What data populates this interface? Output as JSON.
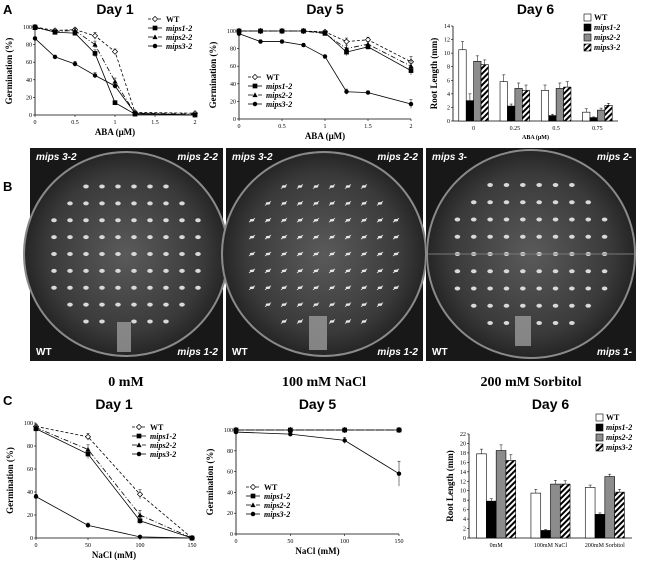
{
  "panel_letters": [
    "A",
    "B",
    "C"
  ],
  "photo_panel": {
    "plates": [
      {
        "top_left": "mips 3-2",
        "top_right": "mips 2-2",
        "bottom_left": "WT",
        "bottom_right": "mips 1-2",
        "caption": "0 mM"
      },
      {
        "top_left": "mips 3-2",
        "top_right": "mips 2-2",
        "bottom_left": "WT",
        "bottom_right": "mips 1-2",
        "caption": "100 mM NaCl"
      },
      {
        "top_left": "mips 3-",
        "top_right": "mips 2-",
        "bottom_left": "WT",
        "bottom_right": "mips 1-",
        "caption": "200 mM Sorbitol"
      }
    ]
  },
  "chart_data": [
    {
      "id": "A1",
      "type": "line",
      "title": "Day 1",
      "xlabel": "ABA (μM)",
      "ylabel": "Germination (%)",
      "xlim": [
        0,
        2
      ],
      "ylim": [
        0,
        100
      ],
      "xticks": [
        0,
        0.5,
        1,
        1.5,
        2
      ],
      "xtick_labels": [
        "0",
        "0.5",
        "1",
        "1.5",
        "2"
      ],
      "yticks": [
        0,
        20,
        40,
        60,
        80,
        100
      ],
      "ytick_labels": [
        "0",
        "20",
        "40",
        "60",
        "80",
        "100"
      ],
      "legend_position": "top-right",
      "grid": false,
      "series": [
        {
          "name": "WT",
          "x": [
            0,
            0.25,
            0.5,
            0.75,
            1,
            1.25,
            2
          ],
          "y": [
            100,
            96,
            97,
            90,
            72,
            3,
            2
          ],
          "err": [
            1,
            2,
            2,
            4,
            3,
            1,
            1
          ]
        },
        {
          "name": "mips1-2",
          "x": [
            0,
            0.25,
            0.5,
            0.75,
            1,
            1.25,
            2
          ],
          "y": [
            100,
            94,
            93,
            70,
            14,
            1,
            0
          ],
          "err": [
            1,
            2,
            2,
            4,
            2,
            1,
            0
          ]
        },
        {
          "name": "mips2-2",
          "x": [
            0,
            0.25,
            0.5,
            0.75,
            1,
            1.25,
            2
          ],
          "y": [
            99,
            95,
            96,
            80,
            38,
            2,
            1
          ],
          "err": [
            1,
            2,
            2,
            4,
            4,
            1,
            1
          ]
        },
        {
          "name": "mips3-2",
          "x": [
            0,
            0.25,
            0.5,
            0.75,
            1,
            1.25,
            2
          ],
          "y": [
            87,
            66,
            58,
            45,
            33,
            2,
            0
          ],
          "err": [
            2,
            2,
            3,
            3,
            3,
            1,
            0
          ]
        }
      ]
    },
    {
      "id": "A2",
      "type": "line",
      "title": "Day 5",
      "xlabel": "ABA (μM)",
      "ylabel": "Germination (%)",
      "xlim": [
        0,
        2
      ],
      "ylim": [
        0,
        100
      ],
      "xticks": [
        0,
        0.5,
        1,
        1.5,
        2
      ],
      "xtick_labels": [
        "0",
        "0.5",
        "1",
        "1.5",
        "2"
      ],
      "yticks": [
        0,
        20,
        40,
        60,
        80,
        100
      ],
      "ytick_labels": [
        "0",
        "20",
        "40",
        "60",
        "80",
        "100"
      ],
      "legend_position": "bottom-left",
      "grid": false,
      "series": [
        {
          "name": "WT",
          "x": [
            0,
            0.25,
            0.5,
            0.75,
            1,
            1.25,
            1.5,
            2
          ],
          "y": [
            100,
            100,
            100,
            100,
            99,
            88,
            90,
            65
          ],
          "err": [
            0,
            0,
            0,
            0,
            1,
            4,
            3,
            6
          ]
        },
        {
          "name": "mips1-2",
          "x": [
            0,
            0.25,
            0.5,
            0.75,
            1,
            1.25,
            1.5,
            2
          ],
          "y": [
            100,
            100,
            100,
            100,
            98,
            76,
            82,
            55
          ],
          "err": [
            0,
            0,
            0,
            0,
            1,
            4,
            3,
            5
          ]
        },
        {
          "name": "mips2-2",
          "x": [
            0,
            0.25,
            0.5,
            0.75,
            1,
            1.25,
            1.5,
            2
          ],
          "y": [
            100,
            100,
            100,
            100,
            97,
            80,
            85,
            60
          ],
          "err": [
            0,
            0,
            0,
            0,
            1,
            4,
            3,
            6
          ]
        },
        {
          "name": "mips3-2",
          "x": [
            0,
            0.25,
            0.5,
            0.75,
            1,
            1.25,
            1.5,
            2
          ],
          "y": [
            97,
            88,
            88,
            84,
            71,
            31,
            30,
            17
          ],
          "err": [
            1,
            2,
            2,
            2,
            2,
            3,
            2,
            5
          ]
        }
      ]
    },
    {
      "id": "A3",
      "type": "bar",
      "title": "Day 6",
      "xlabel": "ABA (μM)",
      "ylabel": "Root Length (mm)",
      "ylim": [
        0,
        14
      ],
      "yticks": [
        0,
        2,
        4,
        6,
        8,
        10,
        12,
        14
      ],
      "ytick_labels": [
        "0",
        "2",
        "4",
        "6",
        "8",
        "10",
        "12",
        "14"
      ],
      "categories": [
        "0",
        "0.25",
        "0.5",
        "0.75"
      ],
      "legend_position": "top-right",
      "grid": false,
      "series": [
        {
          "name": "WT",
          "values": [
            10.5,
            5.8,
            4.5,
            1.3
          ],
          "err": [
            1.2,
            1.0,
            0.8,
            0.5
          ]
        },
        {
          "name": "mips1-2",
          "values": [
            3.0,
            2.2,
            0.8,
            0.5
          ],
          "err": [
            1.0,
            0.3,
            0.2,
            0.1
          ]
        },
        {
          "name": "mips2-2",
          "values": [
            8.8,
            4.8,
            4.8,
            1.6
          ],
          "err": [
            0.8,
            0.8,
            0.8,
            0.3
          ]
        },
        {
          "name": "mips3-2",
          "values": [
            8.3,
            4.5,
            5.0,
            2.3
          ],
          "err": [
            0.7,
            0.8,
            0.8,
            0.3
          ]
        }
      ]
    },
    {
      "id": "C1",
      "type": "line",
      "title": "Day 1",
      "xlabel": "NaCl (mM)",
      "ylabel": "Germination (%)",
      "xlim": [
        0,
        150
      ],
      "ylim": [
        0,
        100
      ],
      "xticks": [
        0,
        50,
        100,
        150
      ],
      "xtick_labels": [
        "0",
        "50",
        "100",
        "150"
      ],
      "yticks": [
        0,
        20,
        40,
        60,
        80,
        100
      ],
      "ytick_labels": [
        "0",
        "20",
        "40",
        "60",
        "80",
        "100"
      ],
      "legend_position": "top-right",
      "grid": false,
      "series": [
        {
          "name": "WT",
          "x": [
            0,
            50,
            100,
            150
          ],
          "y": [
            97,
            88,
            38,
            0
          ],
          "err": [
            2,
            3,
            4,
            0
          ]
        },
        {
          "name": "mips1-2",
          "x": [
            0,
            50,
            100,
            150
          ],
          "y": [
            95,
            73,
            15,
            0
          ],
          "err": [
            2,
            4,
            3,
            0
          ]
        },
        {
          "name": "mips2-2",
          "x": [
            0,
            50,
            100,
            150
          ],
          "y": [
            96,
            77,
            20,
            0
          ],
          "err": [
            2,
            4,
            4,
            0
          ]
        },
        {
          "name": "mips3-2",
          "x": [
            0,
            50,
            100,
            150
          ],
          "y": [
            36,
            11,
            1,
            0
          ],
          "err": [
            2,
            2,
            1,
            0
          ]
        }
      ]
    },
    {
      "id": "C2",
      "type": "line",
      "title": "Day 5",
      "xlabel": "NaCl (mM)",
      "ylabel": "Germination (%)",
      "xlim": [
        0,
        150
      ],
      "ylim": [
        0,
        100
      ],
      "xticks": [
        0,
        50,
        100,
        150
      ],
      "xtick_labels": [
        "0",
        "50",
        "100",
        "150"
      ],
      "yticks": [
        0,
        20,
        40,
        60,
        80,
        100
      ],
      "ytick_labels": [
        "0",
        "20",
        "40",
        "60",
        "80",
        "100"
      ],
      "legend_position": "bottom-left",
      "grid": false,
      "series": [
        {
          "name": "WT",
          "x": [
            0,
            50,
            100,
            150
          ],
          "y": [
            100,
            100,
            100,
            100
          ],
          "err": [
            0,
            0,
            0,
            0
          ]
        },
        {
          "name": "mips1-2",
          "x": [
            0,
            50,
            100,
            150
          ],
          "y": [
            100,
            100,
            100,
            100
          ],
          "err": [
            0,
            0,
            0,
            0
          ]
        },
        {
          "name": "mips2-2",
          "x": [
            0,
            50,
            100,
            150
          ],
          "y": [
            100,
            100,
            100,
            100
          ],
          "err": [
            0,
            0,
            0,
            0
          ]
        },
        {
          "name": "mips3-2",
          "x": [
            0,
            50,
            100,
            150
          ],
          "y": [
            98,
            96,
            90,
            58
          ],
          "err": [
            1,
            2,
            3,
            12
          ]
        }
      ]
    },
    {
      "id": "C3",
      "type": "bar",
      "title": "Day 6",
      "xlabel": "",
      "ylabel": "Root Length (mm)",
      "ylim": [
        0,
        22
      ],
      "yticks": [
        0,
        2,
        4,
        6,
        8,
        10,
        12,
        14,
        16,
        18,
        20,
        22
      ],
      "ytick_labels": [
        "0",
        "2",
        "4",
        "6",
        "8",
        "10",
        "12",
        "14",
        "16",
        "18",
        "20",
        "22"
      ],
      "categories": [
        "0mM",
        "100mM NaCl",
        "200mM Sorbitol"
      ],
      "legend_position": "top-right",
      "grid": false,
      "series": [
        {
          "name": "WT",
          "values": [
            17.8,
            9.5,
            10.7
          ],
          "err": [
            1.0,
            0.8,
            0.5
          ]
        },
        {
          "name": "mips1-2",
          "values": [
            7.8,
            1.6,
            5.0
          ],
          "err": [
            0.5,
            0.2,
            0.3
          ]
        },
        {
          "name": "mips2-2",
          "values": [
            18.5,
            11.4,
            13.0
          ],
          "err": [
            1.2,
            0.8,
            0.5
          ]
        },
        {
          "name": "mips3-2",
          "values": [
            16.4,
            11.4,
            9.7
          ],
          "err": [
            1.2,
            0.7,
            0.6
          ]
        }
      ]
    }
  ]
}
